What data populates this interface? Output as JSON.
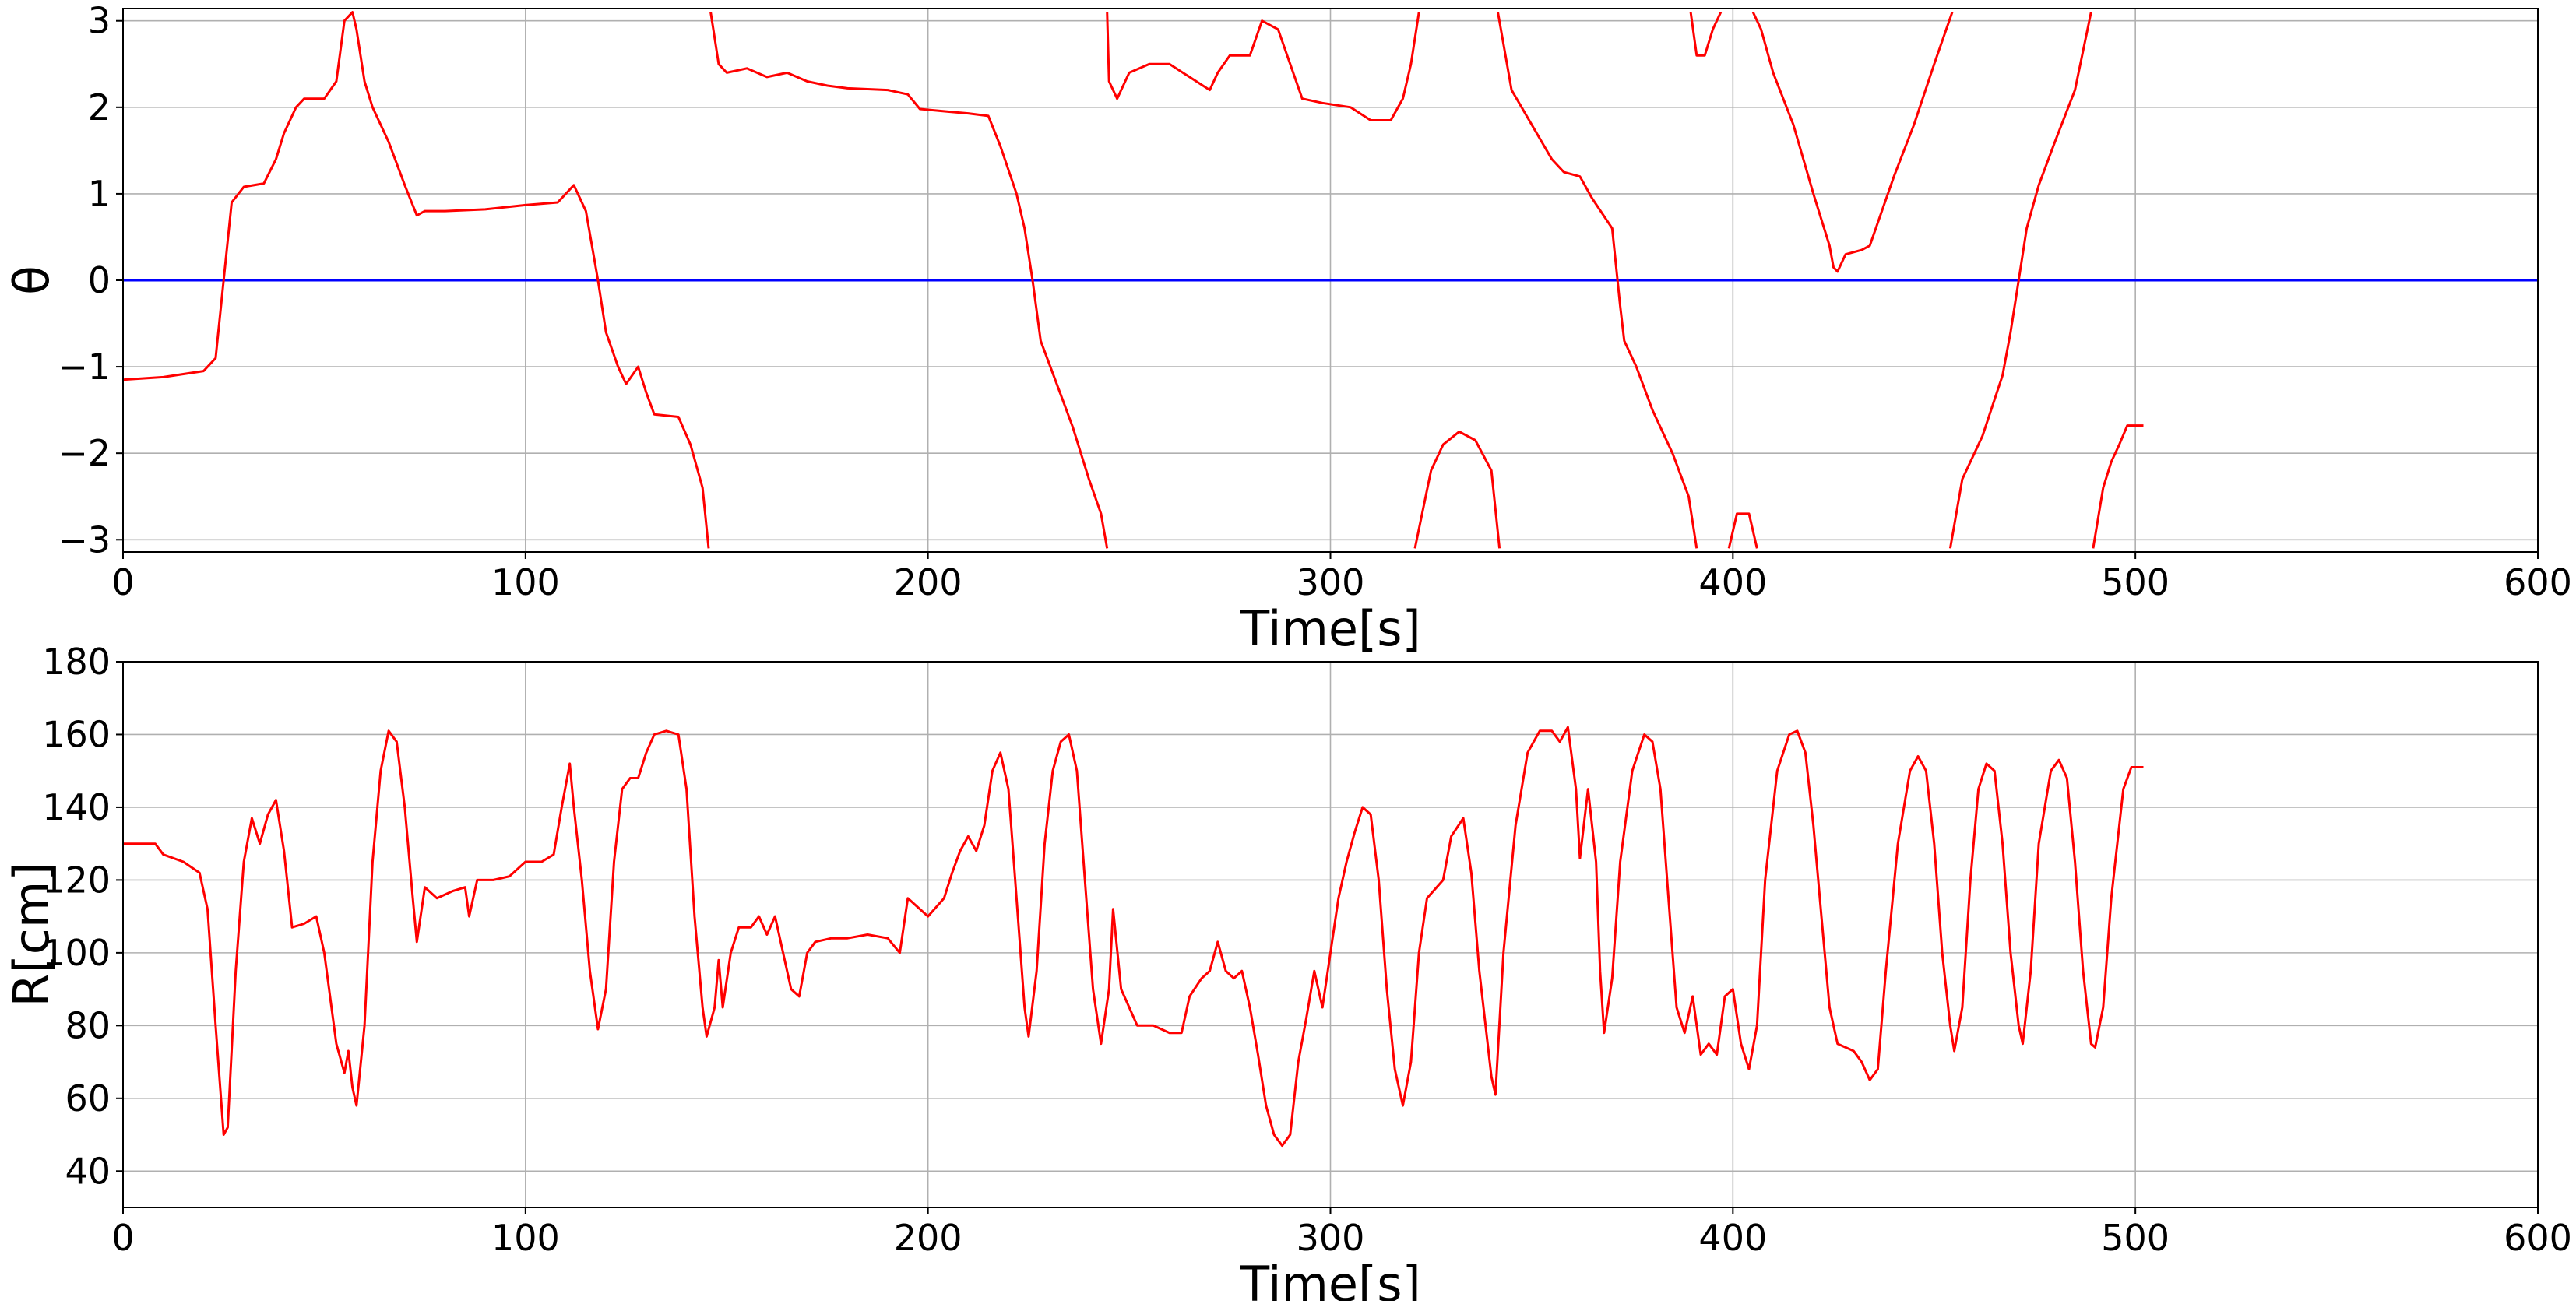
{
  "chart_data": [
    {
      "type": "line",
      "ylabel": "θ",
      "xlabel": "Time[s]",
      "xlim": [
        0,
        600
      ],
      "xticks": [
        0,
        100,
        200,
        300,
        400,
        500,
        600
      ],
      "ylim": [
        -3.14159,
        3.14159
      ],
      "yticks": [
        {
          "value": -3,
          "label": "−3"
        },
        {
          "value": -2,
          "label": "−2"
        },
        {
          "value": -1,
          "label": "−1"
        },
        0,
        1,
        2,
        3
      ],
      "grid": true,
      "hline": {
        "value": 0,
        "color": "#0000ff"
      },
      "x": [
        0,
        10,
        20,
        23,
        25,
        27,
        30,
        35,
        38,
        40,
        43,
        45,
        50,
        53,
        55,
        57,
        58,
        60,
        62,
        66,
        70,
        73,
        75,
        80,
        90,
        100,
        108,
        112,
        115,
        118,
        120,
        123,
        125,
        128,
        130,
        132,
        138,
        141,
        144,
        145.5,
        145.7,
        146,
        148,
        150,
        155,
        160,
        165,
        170,
        175,
        180,
        190,
        195,
        198,
        205,
        210,
        215,
        218,
        222,
        224,
        226,
        228,
        232,
        236,
        240,
        243,
        244.5,
        244,
        244.5,
        245,
        247,
        250,
        255,
        260,
        265,
        270,
        272,
        275,
        280,
        283,
        287,
        290,
        293,
        298,
        305,
        310,
        315,
        318,
        320,
        322,
        321.5,
        321,
        325,
        328,
        332,
        336,
        340,
        342,
        341.8,
        341.6,
        345,
        350,
        355,
        358,
        362,
        365,
        370,
        372,
        373,
        376,
        380,
        385,
        389,
        391,
        390,
        389.5,
        391,
        393,
        395,
        397,
        398,
        399,
        401,
        404,
        406,
        405.5,
        405,
        407,
        410,
        415,
        420,
        424,
        425,
        426,
        428,
        432,
        434,
        437,
        440,
        445,
        450,
        453,
        454.5,
        454.2,
        454,
        457,
        462,
        467,
        469,
        471,
        473,
        476,
        480,
        485,
        489,
        489.2,
        489.5,
        492,
        494,
        496,
        498,
        502
      ],
      "series": [
        {
          "name": "θ",
          "color": "#ff0000",
          "values": [
            -1.15,
            -1.12,
            -1.05,
            -0.9,
            0,
            0.9,
            1.08,
            1.12,
            1.4,
            1.7,
            2.0,
            2.1,
            2.1,
            2.3,
            3.0,
            3.1,
            2.9,
            2.3,
            2.0,
            1.6,
            1.1,
            0.75,
            0.8,
            0.8,
            0.82,
            0.87,
            0.9,
            1.1,
            0.8,
            0.0,
            -0.6,
            -1.0,
            -1.2,
            -1.0,
            -1.3,
            -1.55,
            -1.58,
            -1.9,
            -2.4,
            -3.1,
            null,
            3.1,
            2.5,
            2.4,
            2.45,
            2.35,
            2.4,
            2.3,
            2.25,
            2.22,
            2.2,
            2.15,
            1.98,
            1.95,
            1.93,
            1.9,
            1.55,
            1.0,
            0.6,
            0.0,
            -0.7,
            -1.2,
            -1.7,
            -2.3,
            -2.7,
            -3.1,
            null,
            3.1,
            2.3,
            2.1,
            2.4,
            2.5,
            2.5,
            2.35,
            2.2,
            2.4,
            2.6,
            2.6,
            3.0,
            2.9,
            2.5,
            2.1,
            2.05,
            2.0,
            1.85,
            1.85,
            2.1,
            2.5,
            3.1,
            null,
            -3.1,
            -2.2,
            -1.9,
            -1.75,
            -1.85,
            -2.2,
            -3.1,
            null,
            3.1,
            2.2,
            1.8,
            1.4,
            1.25,
            1.2,
            0.95,
            0.6,
            -0.3,
            -0.7,
            -1.0,
            -1.5,
            -2.0,
            -2.5,
            -3.1,
            null,
            3.1,
            2.6,
            2.6,
            2.9,
            3.1,
            null,
            -3.1,
            -2.7,
            -2.7,
            -3.1,
            null,
            3.1,
            2.9,
            2.4,
            1.8,
            1.0,
            0.4,
            0.15,
            0.1,
            0.3,
            0.35,
            0.4,
            0.8,
            1.2,
            1.8,
            2.5,
            2.9,
            3.1,
            null,
            -3.1,
            -2.3,
            -1.8,
            -1.1,
            -0.6,
            0,
            0.6,
            1.1,
            1.6,
            2.2,
            3.1,
            null,
            -3.1,
            -2.4,
            -2.1,
            -1.9,
            -1.68,
            -1.68
          ]
        }
      ]
    },
    {
      "type": "line",
      "ylabel": "R[cm]",
      "xlabel": "Time[s]",
      "xlim": [
        0,
        600
      ],
      "xticks": [
        0,
        100,
        200,
        300,
        400,
        500,
        600
      ],
      "ylim": [
        30,
        180
      ],
      "yticks": [
        40,
        60,
        80,
        100,
        120,
        140,
        160,
        180
      ],
      "grid": true,
      "x": [
        0,
        8,
        10,
        15,
        19,
        21,
        23,
        25,
        26,
        28,
        30,
        32,
        34,
        36,
        38,
        40,
        42,
        45,
        48,
        50,
        53,
        55,
        56,
        57,
        58,
        60,
        62,
        64,
        66,
        68,
        70,
        72,
        73,
        75,
        78,
        82,
        85,
        86,
        88,
        92,
        96,
        100,
        104,
        107,
        109,
        111,
        112,
        114,
        116,
        118,
        120,
        122,
        124,
        126,
        128,
        130,
        132,
        135,
        138,
        140,
        142,
        144,
        145,
        147,
        148,
        149,
        151,
        153,
        156,
        158,
        160,
        162,
        164,
        166,
        168,
        170,
        172,
        176,
        180,
        185,
        190,
        193,
        195,
        198,
        200,
        204,
        206,
        208,
        210,
        212,
        214,
        216,
        218,
        220,
        222,
        224,
        225,
        227,
        229,
        231,
        233,
        235,
        237,
        239,
        241,
        243,
        245,
        246,
        248,
        250,
        252,
        256,
        260,
        263,
        265,
        268,
        270,
        272,
        274,
        276,
        278,
        280,
        282,
        284,
        286,
        288,
        290,
        292,
        294,
        296,
        298,
        300,
        302,
        304,
        306,
        308,
        310,
        312,
        314,
        316,
        318,
        320,
        322,
        324,
        328,
        330,
        333,
        335,
        337,
        340,
        341,
        343,
        346,
        349,
        352,
        355,
        357,
        359,
        361,
        362,
        364,
        366,
        367,
        368,
        370,
        372,
        375,
        378,
        380,
        382,
        384,
        386,
        388,
        390,
        392,
        394,
        396,
        398,
        400,
        402,
        404,
        406,
        408,
        411,
        414,
        416,
        418,
        420,
        422,
        424,
        426,
        430,
        432,
        434,
        436,
        438,
        441,
        444,
        446,
        448,
        450,
        452,
        454,
        455,
        457,
        459,
        461,
        463,
        465,
        467,
        469,
        471,
        472,
        474,
        476,
        479,
        481,
        483,
        485,
        487,
        489,
        490,
        492,
        494,
        497,
        499,
        502
      ],
      "series": [
        {
          "name": "R",
          "color": "#ff0000",
          "values": [
            130,
            130,
            127,
            125,
            122,
            112,
            80,
            50,
            52,
            95,
            125,
            137,
            130,
            138,
            142,
            128,
            107,
            108,
            110,
            100,
            75,
            67,
            73,
            63,
            58,
            80,
            125,
            150,
            161,
            158,
            140,
            115,
            103,
            118,
            115,
            117,
            118,
            110,
            120,
            120,
            121,
            125,
            125,
            127,
            140,
            152,
            140,
            120,
            95,
            79,
            90,
            125,
            145,
            148,
            148,
            155,
            160,
            161,
            160,
            145,
            110,
            85,
            77,
            85,
            98,
            85,
            100,
            107,
            107,
            110,
            105,
            110,
            100,
            90,
            88,
            100,
            103,
            104,
            104,
            105,
            104,
            100,
            115,
            112,
            110,
            115,
            122,
            128,
            132,
            128,
            135,
            150,
            155,
            145,
            115,
            85,
            77,
            95,
            130,
            150,
            158,
            160,
            150,
            120,
            90,
            75,
            90,
            112,
            90,
            85,
            80,
            80,
            78,
            78,
            88,
            93,
            95,
            103,
            95,
            93,
            95,
            85,
            72,
            58,
            50,
            47,
            50,
            70,
            82,
            95,
            85,
            100,
            115,
            125,
            133,
            140,
            138,
            120,
            90,
            68,
            58,
            70,
            100,
            115,
            120,
            132,
            137,
            122,
            95,
            66,
            61,
            100,
            135,
            155,
            161,
            161,
            158,
            162,
            145,
            126,
            145,
            125,
            95,
            78,
            93,
            125,
            150,
            160,
            158,
            145,
            115,
            85,
            78,
            88,
            72,
            75,
            72,
            88,
            90,
            75,
            68,
            80,
            120,
            150,
            160,
            161,
            155,
            135,
            110,
            85,
            75,
            73,
            70,
            65,
            68,
            95,
            130,
            150,
            154,
            150,
            130,
            100,
            80,
            73,
            85,
            120,
            145,
            152,
            150,
            130,
            100,
            80,
            75,
            95,
            130,
            150,
            153,
            148,
            125,
            95,
            75,
            74,
            85,
            115,
            145,
            151,
            151
          ]
        }
      ]
    }
  ]
}
